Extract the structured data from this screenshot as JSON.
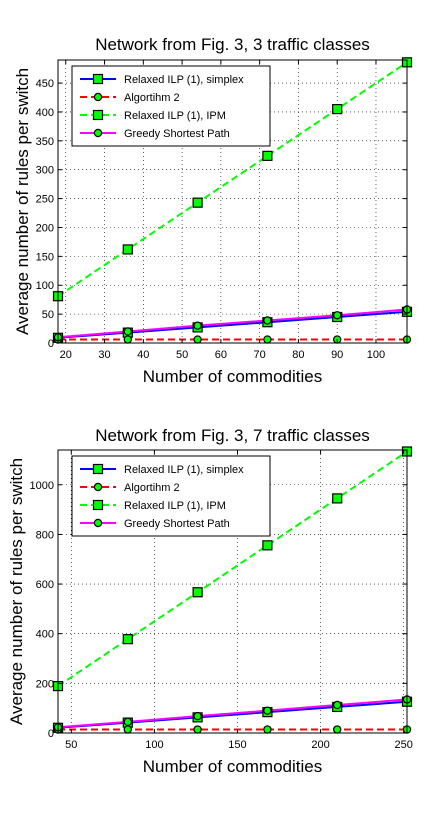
{
  "chart_data": [
    {
      "type": "line",
      "title": "Network from Fig. 3, 3 traffic classes",
      "xlabel": "Number of commodities",
      "ylabel": "Average number of rules per switch",
      "xlim": [
        18,
        108
      ],
      "ylim": [
        0,
        490
      ],
      "xticks": [
        20,
        30,
        40,
        50,
        60,
        70,
        80,
        90,
        100
      ],
      "yticks": [
        0,
        50,
        100,
        150,
        200,
        250,
        300,
        350,
        400,
        450
      ],
      "grid": true,
      "legend_position": "top-left",
      "x": [
        18,
        36,
        54,
        72,
        90,
        108
      ],
      "series": [
        {
          "name": "Relaxed ILP (1), simplex",
          "values": [
            9,
            18,
            27,
            36,
            45,
            54
          ],
          "color": "#0000ff",
          "dash": "solid",
          "marker": "square"
        },
        {
          "name": "Algortihm 2",
          "values": [
            6,
            6,
            6,
            6,
            6,
            6
          ],
          "color": "#ff0000",
          "dash": "dashed",
          "marker": "circle"
        },
        {
          "name": "Relaxed ILP (1), IPM",
          "values": [
            81,
            162,
            243,
            324,
            405,
            486
          ],
          "color": "#00ff00",
          "dash": "dashed",
          "marker": "square"
        },
        {
          "name": "Greedy Shortest Path",
          "values": [
            10,
            20,
            30,
            39,
            48,
            58
          ],
          "color": "#ff00ff",
          "dash": "solid",
          "marker": "circle"
        }
      ]
    },
    {
      "type": "line",
      "title": "Network from Fig. 3, 7 traffic classes",
      "xlabel": "Number of commodities",
      "ylabel": "Average number of rules per switch",
      "xlim": [
        42,
        252
      ],
      "ylim": [
        0,
        1140
      ],
      "xticks": [
        50,
        100,
        150,
        200,
        250
      ],
      "yticks": [
        0,
        200,
        400,
        600,
        800,
        1000
      ],
      "grid": true,
      "legend_position": "top-left",
      "x": [
        42,
        84,
        126,
        168,
        210,
        252
      ],
      "series": [
        {
          "name": "Relaxed ILP (1), simplex",
          "values": [
            21,
            42,
            63,
            84,
            105,
            126
          ],
          "color": "#0000ff",
          "dash": "solid",
          "marker": "square"
        },
        {
          "name": "Algortihm 2",
          "values": [
            14,
            14,
            14,
            14,
            14,
            14
          ],
          "color": "#ff0000",
          "dash": "dashed",
          "marker": "circle"
        },
        {
          "name": "Relaxed ILP (1), IPM",
          "values": [
            189,
            378,
            567,
            756,
            945,
            1134
          ],
          "color": "#00ff00",
          "dash": "dashed",
          "marker": "square"
        },
        {
          "name": "Greedy Shortest Path",
          "values": [
            23,
            45,
            68,
            90,
            113,
            135
          ],
          "color": "#ff00ff",
          "dash": "solid",
          "marker": "circle"
        }
      ]
    }
  ]
}
